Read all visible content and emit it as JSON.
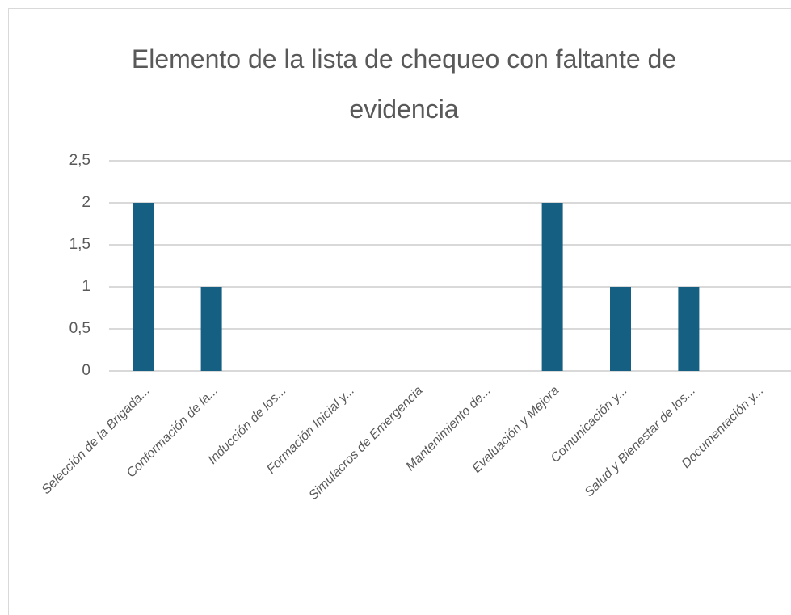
{
  "chart_data": {
    "type": "bar",
    "title": "Elemento de la lista de chequeo con faltante de evidencia",
    "categories": [
      "Selección de la Brigada...",
      "Conformación de la...",
      "Inducción de los...",
      "Formación Inicial y...",
      "Simulacros de Emergencia",
      "Mantenimiento de...",
      "Evaluación y Mejora",
      "Comunicación y...",
      "Salud y Bienestar de los...",
      "Documentación y..."
    ],
    "values": [
      2,
      1,
      0,
      0,
      0,
      0,
      2,
      1,
      1,
      0
    ],
    "color": "#145f82",
    "ylim": [
      0,
      2.5
    ],
    "yticks": [
      0,
      {
        "value": 0.5,
        "label": "0,5"
      },
      1,
      {
        "value": 1.5,
        "label": "1,5"
      },
      2,
      {
        "value": 2.5,
        "label": "2,5"
      }
    ],
    "grid": true
  }
}
